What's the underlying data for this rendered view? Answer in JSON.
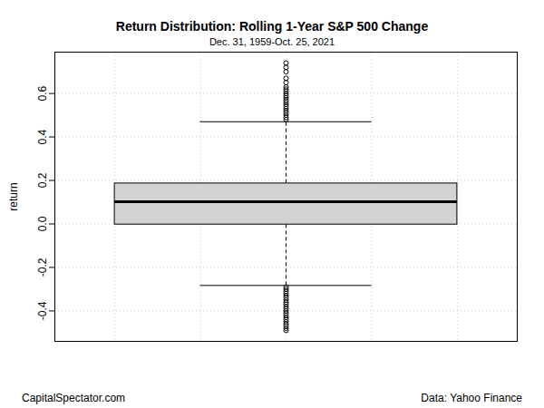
{
  "chart_data": {
    "type": "box",
    "title": "Return Distribution: Rolling 1-Year S&P 500 Change",
    "subtitle": "Dec. 31, 1959-Oct. 25, 2021",
    "y_label": "return",
    "caption": "CapitalSpectator.com",
    "source": "Data: Yahoo Finance",
    "x": 1,
    "low_whisker": -0.283,
    "q1": -0.003,
    "median": 0.102,
    "q3": 0.186,
    "high_whisker": 0.47,
    "outliers": [
      0.48,
      0.49,
      0.5,
      0.51,
      0.52,
      0.53,
      0.54,
      0.55,
      0.56,
      0.57,
      0.58,
      0.59,
      0.6,
      0.61,
      0.62,
      0.63,
      0.65,
      0.67,
      0.7,
      0.72,
      0.74,
      -0.29,
      -0.3,
      -0.31,
      -0.32,
      -0.33,
      -0.34,
      -0.35,
      -0.36,
      -0.37,
      -0.38,
      -0.39,
      -0.4,
      -0.41,
      -0.42,
      -0.43,
      -0.44,
      -0.45,
      -0.46,
      -0.47,
      -0.48,
      -0.49
    ],
    "color": "#d3d3d3",
    "xlim": [
      0.46,
      1.54
    ],
    "xticks": [
      0.6,
      0.8,
      1,
      1.2,
      1.4
    ],
    "ylim": [
      -0.54,
      0.79
    ],
    "yticks": [
      -0.4,
      -0.2,
      {
        "value": 0,
        "label": "0.0"
      },
      0.2,
      0.4,
      0.6
    ],
    "tick_labels": "y",
    "grid": true
  }
}
